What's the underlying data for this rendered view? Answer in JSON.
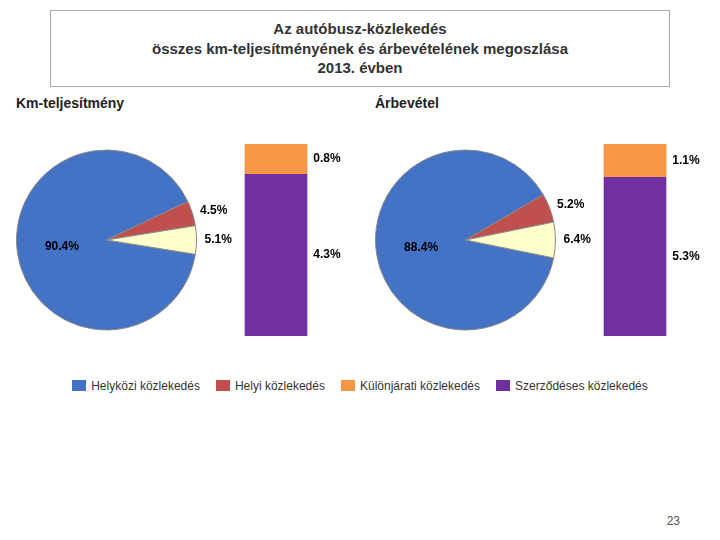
{
  "title": "Az autóbusz-közlekedés\nösszes km-teljesítményének és árbevételének megoszlása\n2013. évben",
  "annotations": [
    "23"
  ],
  "legend": "bottom",
  "chart_data": [
    {
      "type": "pie",
      "title": "Km-teljesítmény",
      "categories": [
        "Helyközi közlekedés",
        "Helyi közlekedés",
        null
      ],
      "values": [
        90.4,
        4.5,
        5.1
      ],
      "value_labels": [
        "90.4%",
        "4.5%",
        "5.1%"
      ],
      "colors": [
        "#4472c4",
        "#c0504d",
        "#ffffcc"
      ],
      "data_labels": true
    },
    {
      "type": "bar",
      "stacked": true,
      "categories": [
        null
      ],
      "series": [
        {
          "name": "Különjárati közlekedés",
          "color": "#f79646",
          "values": [
            0.8
          ],
          "value_labels": [
            "0.8%"
          ]
        },
        {
          "name": "Szerződéses közlekedés",
          "color": "#7030a0",
          "values": [
            4.3
          ],
          "value_labels": [
            "4.3%"
          ]
        }
      ],
      "ylim": [
        0,
        5.1
      ],
      "data_labels": true,
      "tick_labels": false,
      "grid": false
    },
    {
      "type": "pie",
      "title": "Árbevétel",
      "categories": [
        "Helyközi közlekedés",
        "Helyi közlekedés",
        null
      ],
      "values": [
        88.4,
        5.2,
        6.4
      ],
      "value_labels": [
        "88.4%",
        "5.2%",
        "6.4%"
      ],
      "colors": [
        "#4472c4",
        "#c0504d",
        "#ffffcc"
      ],
      "data_labels": true
    },
    {
      "type": "bar",
      "stacked": true,
      "categories": [
        null
      ],
      "series": [
        {
          "name": "Különjárati közlekedés",
          "color": "#f79646",
          "values": [
            1.1
          ],
          "value_labels": [
            "1.1%"
          ]
        },
        {
          "name": "Szerződéses közlekedés",
          "color": "#7030a0",
          "values": [
            5.3
          ],
          "value_labels": [
            "5.3%"
          ]
        }
      ],
      "ylim": [
        0,
        6.4
      ],
      "data_labels": true,
      "tick_labels": false,
      "grid": false
    }
  ]
}
